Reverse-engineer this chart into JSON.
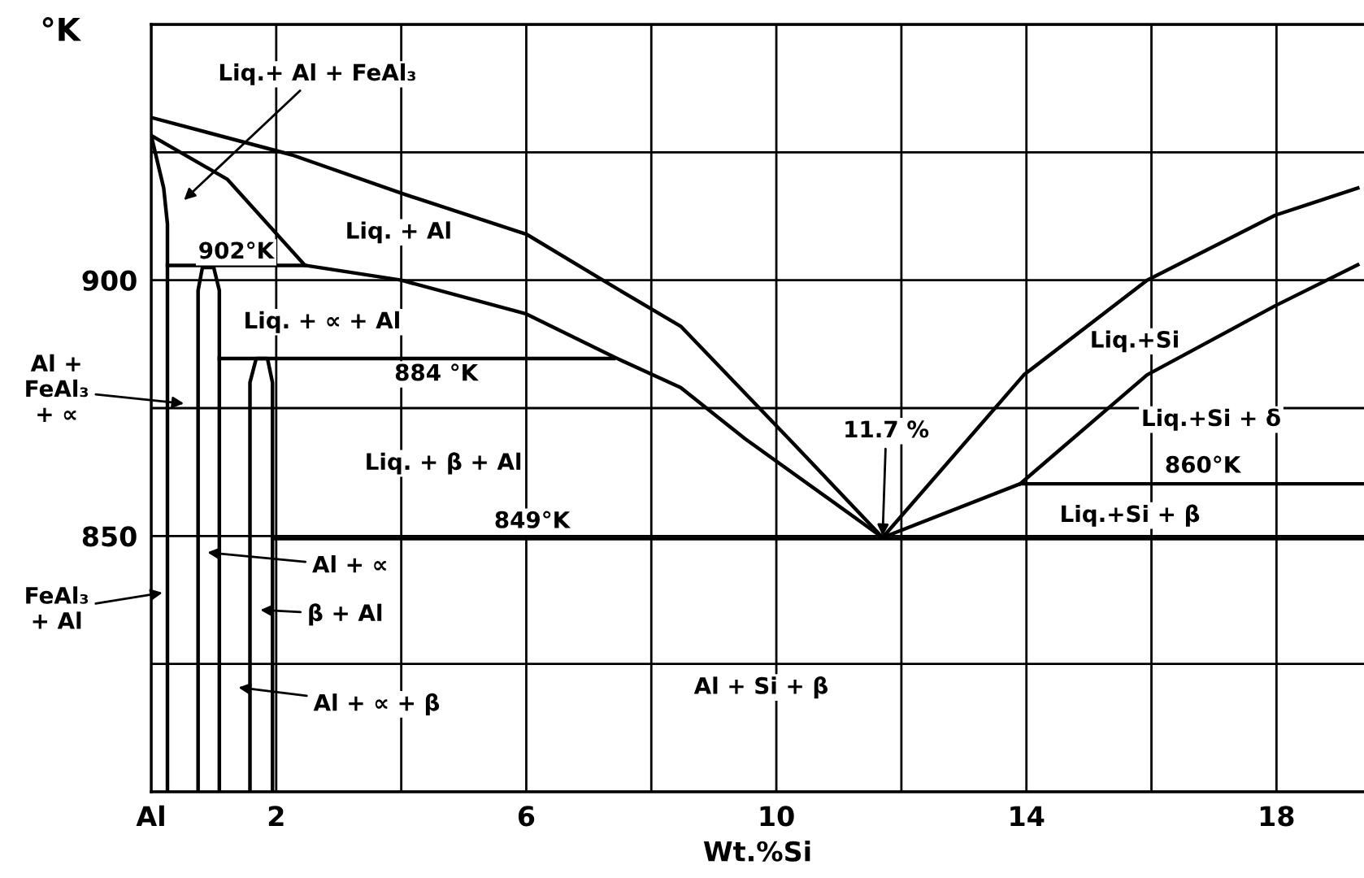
{
  "chart_data": {
    "type": "line",
    "xlabel": "Wt.%Si",
    "ylabel": "°K",
    "xlim": [
      0,
      19.4
    ],
    "ylim": [
      800,
      950
    ],
    "xticks": [
      {
        "value": 0,
        "label": "Al"
      },
      2,
      {
        "value": 4,
        "label": null
      },
      6,
      {
        "value": 8,
        "label": null
      },
      10,
      {
        "value": 12,
        "label": null
      },
      14,
      {
        "value": 16,
        "label": null
      },
      18
    ],
    "yticks": [
      {
        "value": 800,
        "label": null
      },
      {
        "value": 825,
        "label": null
      },
      850,
      {
        "value": 875,
        "label": null
      },
      900,
      {
        "value": 925,
        "label": null
      },
      {
        "value": 950,
        "label": null
      }
    ],
    "grid": true,
    "legend": false,
    "marker": "none",
    "line_style": "solid",
    "series": [
      {
        "color": "#000000",
        "x": [
          0,
          2.25,
          4,
          6,
          7.36,
          8.47,
          10.2,
          11.7,
          13.96,
          15.93,
          17.98,
          19.3
        ],
        "values": [
          931.8,
          924.5,
          917,
          909,
          899,
          891,
          869,
          849.7,
          881.5,
          900,
          912.7,
          918
        ]
      },
      {
        "color": "#000000",
        "x": [
          0,
          1.22,
          2.46,
          4,
          6,
          7.4,
          8.47,
          9.5,
          11.7,
          13.9,
          19.4
        ],
        "values": [
          928.3,
          919.7,
          902.9,
          900,
          893.4,
          885,
          879,
          869,
          849.7,
          860.2,
          860.2
        ]
      },
      {
        "color": "#000000",
        "x": [
          0,
          0.2,
          0.26,
          0.26
        ],
        "values": [
          928.3,
          918,
          911,
          800
        ]
      },
      {
        "color": "#000000",
        "x": [
          0.26,
          2.46
        ],
        "values": [
          902.9,
          902.9
        ]
      },
      {
        "color": "#000000",
        "x": [
          0.75,
          0.75,
          0.82,
          1.0,
          1.09,
          1.09
        ],
        "values": [
          800,
          898,
          902.5,
          902.5,
          898,
          800
        ]
      },
      {
        "color": "#000000",
        "x": [
          1.09,
          7.4
        ],
        "values": [
          884.7,
          884.7
        ]
      },
      {
        "color": "#000000",
        "x": [
          1.58,
          1.58,
          1.68,
          1.86,
          1.94,
          1.94
        ],
        "values": [
          800,
          880,
          884.7,
          884.7,
          880,
          800
        ]
      },
      {
        "color": "#000000",
        "x": [
          1.94,
          19.4
        ],
        "values": [
          849.5,
          849.5
        ]
      },
      {
        "color": "#000000",
        "x": [
          13.9,
          15.93,
          17.98,
          19.3
        ],
        "values": [
          860.2,
          881.5,
          895,
          903
        ]
      }
    ],
    "annotations": [
      "Liq.+ Al + FeAl₃",
      "Liq. + Al",
      "902°K",
      "Liq. + ∝ + Al",
      "884 °K",
      "Al +\nFeAl₃\n+ ∝",
      "Liq. + β + Al",
      "849°K",
      {
        "text": "Al + ∝",
        "x": 0.9,
        "y": 846.8
      },
      "β + Al",
      "Al + ∝ + β",
      {
        "text": "FeAl₃\n+ Al",
        "x": 0.18,
        "y": 838.9
      },
      "Al + Si + β",
      {
        "text": "11.7 %",
        "x": 11.7,
        "y": 850
      },
      "Liq.+Si",
      "Liq.+Si + δ",
      "860°K",
      "Liq.+Si + β"
    ]
  }
}
